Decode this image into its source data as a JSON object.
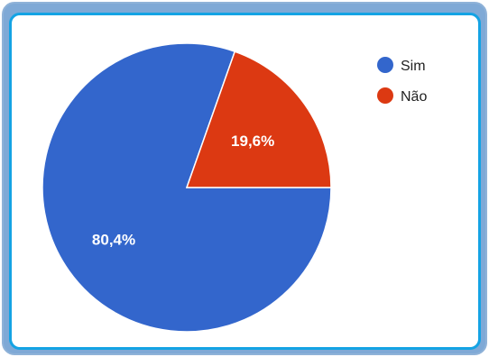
{
  "chart_data": {
    "type": "pie",
    "categories": [
      "Sim",
      "Não"
    ],
    "values": [
      80.4,
      19.6
    ],
    "labels": [
      "80,4%",
      "19,6%"
    ],
    "colors": [
      "#3366cc",
      "#dc3912"
    ],
    "title": "",
    "legend_position": "right",
    "start_angle": "3 o'clock, counter-clockwise for first slice"
  }
}
